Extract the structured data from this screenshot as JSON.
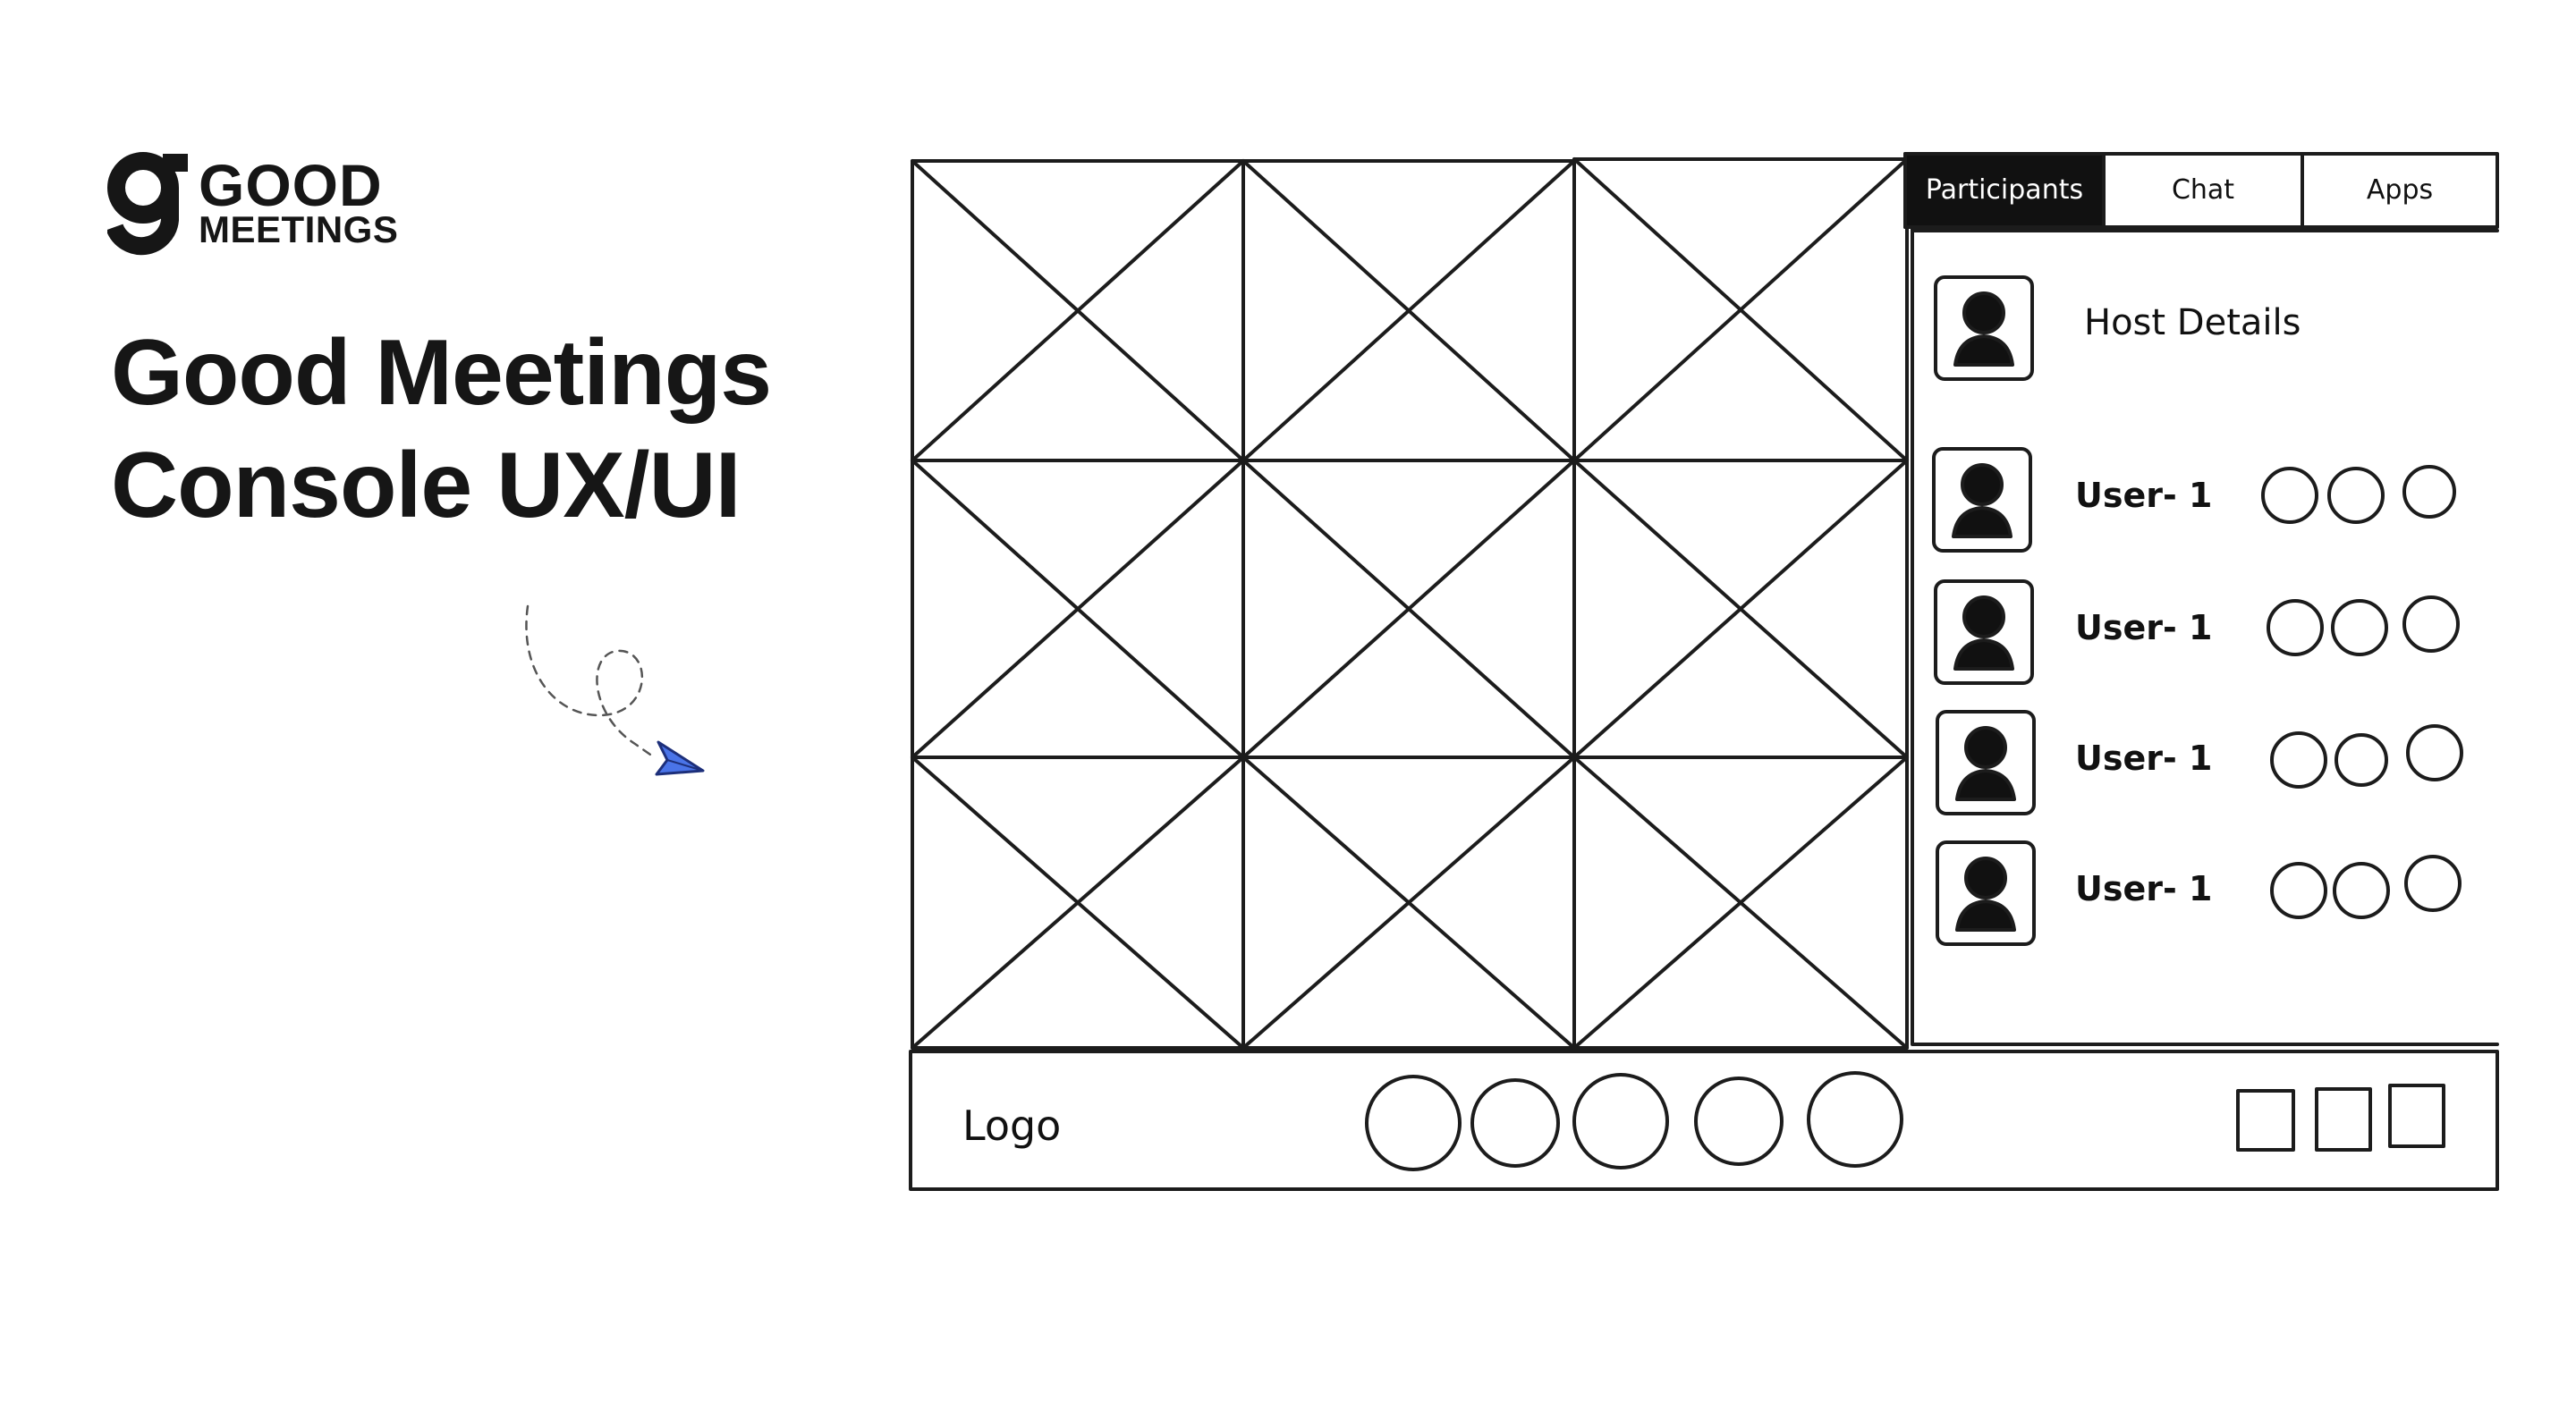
{
  "brand": {
    "logo_icon": "g-logo-mark",
    "name_line1": "GOOD",
    "name_line2": "MEETINGS"
  },
  "title": {
    "line1": "Good Meetings",
    "line2": "Console UX/UI"
  },
  "decoration": {
    "icon": "paper-plane-icon",
    "accent_color": "#4a74e8"
  },
  "wireframe": {
    "video_grid": {
      "rows": 3,
      "columns": 3,
      "tile_icon": "image-placeholder-icon"
    },
    "panel": {
      "tabs": [
        {
          "label": "Participants",
          "active": true
        },
        {
          "label": "Chat",
          "active": false
        },
        {
          "label": "Apps",
          "active": false
        }
      ],
      "host": {
        "label": "Host Details",
        "avatar_icon": "user-avatar-icon"
      },
      "participants": [
        {
          "name": "User- 1",
          "avatar_icon": "user-avatar-icon",
          "controls": 3
        },
        {
          "name": "User- 1",
          "avatar_icon": "user-avatar-icon",
          "controls": 3
        },
        {
          "name": "User- 1",
          "avatar_icon": "user-avatar-icon",
          "controls": 3
        },
        {
          "name": "User- 1",
          "avatar_icon": "user-avatar-icon",
          "controls": 3
        }
      ]
    },
    "footer": {
      "logo_label": "Logo",
      "round_buttons": 5,
      "square_buttons": 3
    }
  }
}
